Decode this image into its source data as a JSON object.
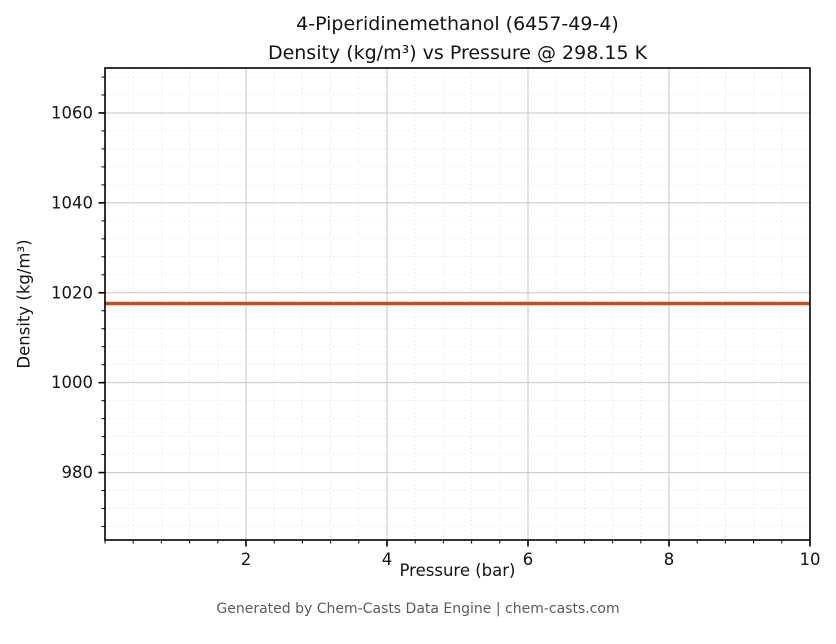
{
  "title": {
    "line1": "4-Piperidinemethanol (6457-49-4)",
    "line2": "Density (kg/m³) vs Pressure @ 298.15 K"
  },
  "footer_text": "Generated by Chem-Casts Data Engine | chem-casts.com",
  "chart_data": {
    "type": "line",
    "title": "4-Piperidinemethanol (6457-49-4)\nDensity (kg/m³) vs Pressure @ 298.15 K",
    "xlabel": "Pressure (bar)",
    "ylabel": "Density (kg/m³)",
    "xlim": [
      0,
      10
    ],
    "ylim": [
      965,
      1070
    ],
    "xticks": [
      2,
      4,
      6,
      8,
      10
    ],
    "yticks": [
      980,
      1000,
      1020,
      1040,
      1060
    ],
    "x_minor_step": 0.4,
    "y_minor_step": 4,
    "grid": true,
    "legend": "none",
    "series": [
      {
        "name": "Density @ 298.15 K",
        "x": [
          0,
          10
        ],
        "y": [
          1017.6,
          1017.6
        ],
        "color": "#c84a1e",
        "linewidth": 3.5
      }
    ],
    "colors": {
      "major_grid": "#c6c6c6",
      "minor_grid": "#d9d9d9",
      "spine": "#000000",
      "text": "#141414"
    }
  }
}
